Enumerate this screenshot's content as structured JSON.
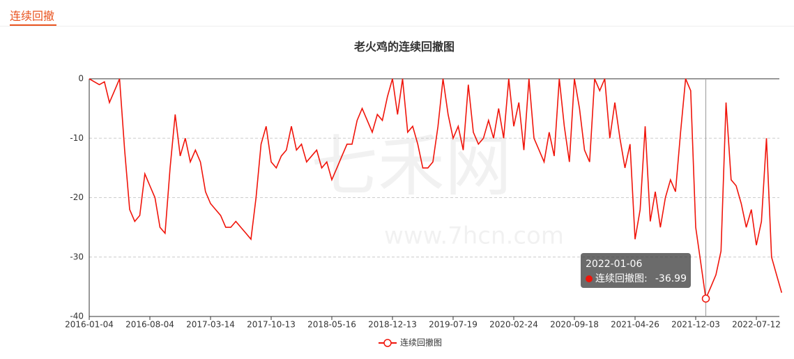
{
  "header": {
    "tab": "连续回撤"
  },
  "chart_data": {
    "type": "line",
    "title": "老火鸡的连续回撤图",
    "watermark": [
      "七禾网",
      "www.7hcn.com"
    ],
    "x": [
      "2016-01-04",
      null,
      null,
      null,
      null,
      null,
      null,
      null,
      null,
      null,
      null,
      null,
      "2016-08-04",
      null,
      null,
      null,
      null,
      null,
      null,
      null,
      null,
      null,
      null,
      null,
      "2017-03-14",
      null,
      null,
      null,
      null,
      null,
      null,
      null,
      null,
      null,
      null,
      null,
      "2017-10-13",
      null,
      null,
      null,
      null,
      null,
      null,
      null,
      null,
      null,
      null,
      null,
      "2018-05-16",
      null,
      null,
      null,
      null,
      null,
      null,
      null,
      null,
      null,
      null,
      null,
      "2018-12-13",
      null,
      null,
      null,
      null,
      null,
      null,
      null,
      null,
      null,
      null,
      null,
      "2019-07-19",
      null,
      null,
      null,
      null,
      null,
      null,
      null,
      null,
      null,
      null,
      null,
      "2020-02-24",
      null,
      null,
      null,
      null,
      null,
      null,
      null,
      null,
      null,
      null,
      null,
      "2020-09-18",
      null,
      null,
      null,
      null,
      null,
      null,
      null,
      null,
      null,
      null,
      null,
      "2021-04-26",
      null,
      null,
      null,
      null,
      null,
      null,
      null,
      null,
      null,
      null,
      null,
      "2021-12-03",
      null,
      null,
      null,
      null,
      null,
      null,
      null,
      null,
      null,
      null,
      null,
      "2022-07-12",
      null,
      null,
      null,
      null,
      null
    ],
    "series": [
      {
        "name": "连续回撤图",
        "color": "#f0140a",
        "values": [
          0,
          -0.5,
          -1,
          -0.5,
          -4,
          -2,
          0,
          -12,
          -22,
          -24,
          -23,
          -16,
          -18,
          -20,
          -25,
          -26,
          -15,
          -6,
          -13,
          -10,
          -14,
          -12,
          -14,
          -19,
          -21,
          -22,
          -23,
          -25,
          -25,
          -24,
          -25,
          -26,
          -27,
          -20,
          -11,
          -8,
          -14,
          -15,
          -13,
          -12,
          -8,
          -12,
          -11,
          -14,
          -13,
          -12,
          -15,
          -14,
          -17,
          -15,
          -13,
          -11,
          -11,
          -7,
          -5,
          -7,
          -9,
          -6,
          -7,
          -3,
          0,
          -6,
          0,
          -9,
          -8,
          -11,
          -15,
          -15,
          -14,
          -8,
          0,
          -6,
          -10,
          -8,
          -12,
          -1,
          -9,
          -11,
          -10,
          -7,
          -10,
          -5,
          -10,
          0,
          -8,
          -4,
          -12,
          0,
          -10,
          -12,
          -14,
          -9,
          -13,
          0,
          -8,
          -14,
          0,
          -5,
          -12,
          -14,
          0,
          -2,
          0,
          -10,
          -4,
          -10,
          -15,
          -11,
          -27,
          -22,
          -8,
          -24,
          -19,
          -25,
          -20,
          -17,
          -19,
          -9,
          0,
          -2,
          -25,
          -31,
          -36.99,
          -35,
          -33,
          -29,
          -4,
          -17,
          -18,
          -21,
          -25,
          -22,
          -28,
          -24,
          -10,
          -30,
          -33,
          -36
        ]
      }
    ],
    "ylim": [
      -40,
      0
    ],
    "yticks": [
      0,
      -10,
      -20,
      -30,
      -40
    ],
    "grid": true,
    "tooltip": {
      "x": "2022-01-06",
      "label": "连续回撤图:",
      "value": -36.99,
      "index": 122
    },
    "legend": "bottom"
  }
}
